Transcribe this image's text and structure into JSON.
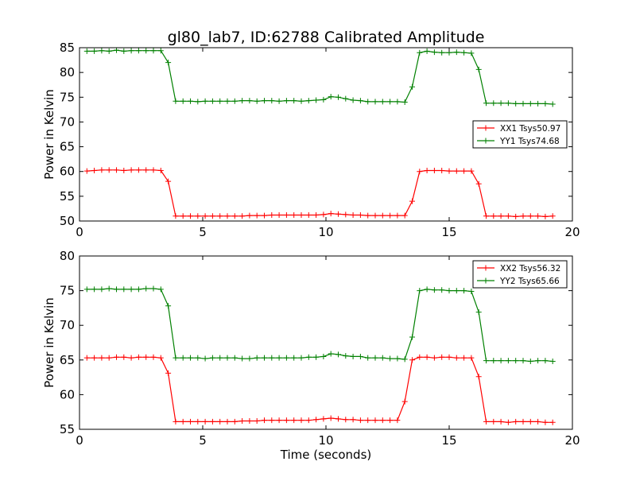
{
  "figure": {
    "title": "gl80_lab7, ID:62788 Calibrated Amplitude",
    "xlabel": "Time (seconds)"
  },
  "colors": {
    "red": "#ff0000",
    "green": "#008000"
  },
  "chart_data": [
    {
      "type": "line",
      "ylabel": "Power in Kelvin",
      "xlim": [
        0,
        20
      ],
      "ylim": [
        50,
        85
      ],
      "xticks": [
        0,
        5,
        10,
        15,
        20
      ],
      "yticks": [
        50,
        55,
        60,
        65,
        70,
        75,
        80,
        85
      ],
      "legend_position": "center-right",
      "x": [
        0.3,
        0.6,
        0.9,
        1.2,
        1.5,
        1.8,
        2.1,
        2.4,
        2.7,
        3.0,
        3.3,
        3.6,
        3.9,
        4.2,
        4.5,
        4.8,
        5.1,
        5.4,
        5.7,
        6.0,
        6.3,
        6.6,
        6.9,
        7.2,
        7.5,
        7.8,
        8.1,
        8.4,
        8.7,
        9.0,
        9.3,
        9.6,
        9.9,
        10.2,
        10.5,
        10.8,
        11.1,
        11.4,
        11.7,
        12.0,
        12.3,
        12.6,
        12.9,
        13.2,
        13.5,
        13.8,
        14.1,
        14.4,
        14.7,
        15.0,
        15.3,
        15.6,
        15.9,
        16.2,
        16.5,
        16.8,
        17.1,
        17.4,
        17.7,
        18.0,
        18.3,
        18.6,
        18.9,
        19.2
      ],
      "series": [
        {
          "name": "XX1 Tsys50.97",
          "color": "#ff0000",
          "values": [
            60.1,
            60.2,
            60.3,
            60.3,
            60.3,
            60.2,
            60.3,
            60.3,
            60.3,
            60.3,
            60.2,
            58.0,
            51.0,
            51.0,
            51.0,
            51.0,
            51.0,
            51.0,
            51.0,
            51.0,
            51.0,
            51.0,
            51.1,
            51.1,
            51.1,
            51.2,
            51.2,
            51.2,
            51.2,
            51.2,
            51.2,
            51.2,
            51.3,
            51.5,
            51.4,
            51.3,
            51.2,
            51.2,
            51.1,
            51.1,
            51.1,
            51.1,
            51.1,
            51.1,
            54.0,
            60.0,
            60.2,
            60.2,
            60.2,
            60.1,
            60.1,
            60.1,
            60.1,
            57.5,
            51.0,
            51.0,
            51.0,
            51.0,
            50.9,
            51.0,
            51.0,
            51.0,
            50.9,
            51.0
          ]
        },
        {
          "name": "YY1 Tsys74.68",
          "color": "#008000",
          "values": [
            84.3,
            84.3,
            84.4,
            84.3,
            84.5,
            84.3,
            84.4,
            84.4,
            84.4,
            84.4,
            84.4,
            82.0,
            74.2,
            74.2,
            74.2,
            74.1,
            74.2,
            74.2,
            74.2,
            74.2,
            74.2,
            74.3,
            74.3,
            74.2,
            74.3,
            74.3,
            74.2,
            74.3,
            74.3,
            74.2,
            74.3,
            74.4,
            74.5,
            75.1,
            75.0,
            74.7,
            74.4,
            74.3,
            74.1,
            74.1,
            74.1,
            74.1,
            74.1,
            74.0,
            77.1,
            84.0,
            84.3,
            84.1,
            84.0,
            84.0,
            84.1,
            84.0,
            83.9,
            80.6,
            73.8,
            73.8,
            73.8,
            73.8,
            73.7,
            73.7,
            73.7,
            73.7,
            73.7,
            73.6
          ]
        }
      ]
    },
    {
      "type": "line",
      "ylabel": "Power in Kelvin",
      "xlabel": "Time (seconds)",
      "xlim": [
        0,
        20
      ],
      "ylim": [
        55,
        80
      ],
      "xticks": [
        0,
        5,
        10,
        15,
        20
      ],
      "yticks": [
        55,
        60,
        65,
        70,
        75,
        80
      ],
      "legend_position": "top-right",
      "x": [
        0.3,
        0.6,
        0.9,
        1.2,
        1.5,
        1.8,
        2.1,
        2.4,
        2.7,
        3.0,
        3.3,
        3.6,
        3.9,
        4.2,
        4.5,
        4.8,
        5.1,
        5.4,
        5.7,
        6.0,
        6.3,
        6.6,
        6.9,
        7.2,
        7.5,
        7.8,
        8.1,
        8.4,
        8.7,
        9.0,
        9.3,
        9.6,
        9.9,
        10.2,
        10.5,
        10.8,
        11.1,
        11.4,
        11.7,
        12.0,
        12.3,
        12.6,
        12.9,
        13.2,
        13.5,
        13.8,
        14.1,
        14.4,
        14.7,
        15.0,
        15.3,
        15.6,
        15.9,
        16.2,
        16.5,
        16.8,
        17.1,
        17.4,
        17.7,
        18.0,
        18.3,
        18.6,
        18.9,
        19.2
      ],
      "series": [
        {
          "name": "XX2 Tsys56.32",
          "color": "#ff0000",
          "values": [
            65.3,
            65.3,
            65.3,
            65.3,
            65.4,
            65.4,
            65.3,
            65.4,
            65.4,
            65.4,
            65.3,
            63.1,
            56.1,
            56.1,
            56.1,
            56.1,
            56.1,
            56.1,
            56.1,
            56.1,
            56.1,
            56.2,
            56.2,
            56.2,
            56.3,
            56.3,
            56.3,
            56.3,
            56.3,
            56.3,
            56.3,
            56.4,
            56.5,
            56.6,
            56.5,
            56.4,
            56.4,
            56.3,
            56.3,
            56.3,
            56.3,
            56.3,
            56.3,
            59.0,
            65.0,
            65.4,
            65.4,
            65.3,
            65.4,
            65.4,
            65.3,
            65.3,
            65.3,
            62.6,
            56.1,
            56.1,
            56.1,
            56.0,
            56.1,
            56.1,
            56.1,
            56.1,
            56.0,
            56.0
          ]
        },
        {
          "name": "YY2 Tsys65.66",
          "color": "#008000",
          "values": [
            75.2,
            75.2,
            75.2,
            75.3,
            75.2,
            75.2,
            75.2,
            75.2,
            75.3,
            75.3,
            75.2,
            72.8,
            65.3,
            65.3,
            65.3,
            65.3,
            65.2,
            65.3,
            65.3,
            65.3,
            65.3,
            65.2,
            65.2,
            65.3,
            65.3,
            65.3,
            65.3,
            65.3,
            65.3,
            65.3,
            65.4,
            65.4,
            65.5,
            65.9,
            65.8,
            65.6,
            65.5,
            65.5,
            65.3,
            65.3,
            65.3,
            65.2,
            65.2,
            65.1,
            68.3,
            75.0,
            75.2,
            75.1,
            75.1,
            75.0,
            75.0,
            75.0,
            74.9,
            71.9,
            64.9,
            64.9,
            64.9,
            64.9,
            64.9,
            64.9,
            64.8,
            64.9,
            64.9,
            64.8
          ]
        }
      ]
    }
  ]
}
